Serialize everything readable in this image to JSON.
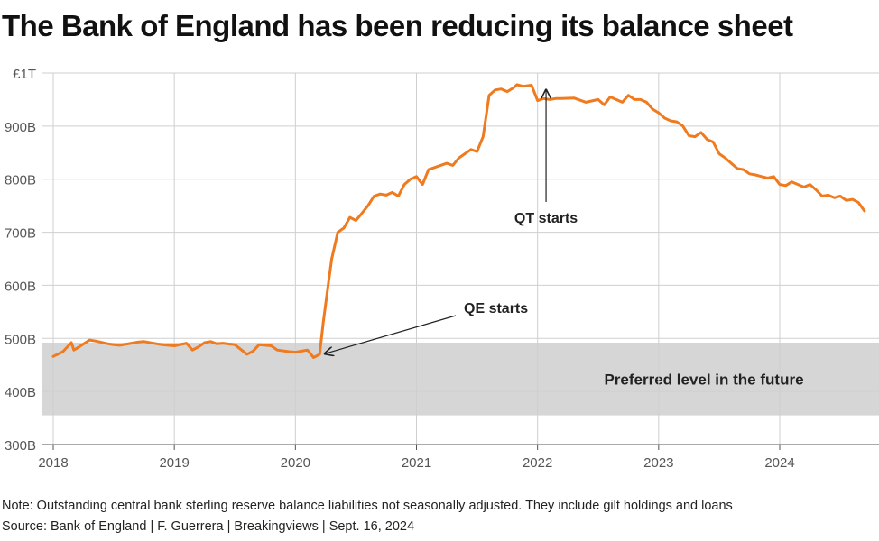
{
  "title": "The Bank of England has been reducing its balance sheet",
  "note": "Note: Outstanding central bank sterling reserve balance liabilities not seasonally adjusted. They include gilt holdings and loans",
  "source": "Source: Bank of England | F. Guerrera | Breakingviews | Sept. 16, 2024",
  "chart_data": {
    "type": "line",
    "title": "The Bank of England has been reducing its balance sheet",
    "xlabel": "",
    "ylabel": "",
    "xlim": [
      2018.0,
      2024.7
    ],
    "ylim": [
      300,
      1000
    ],
    "grid": true,
    "x_ticks": [
      {
        "value": 2018,
        "label": "2018"
      },
      {
        "value": 2019,
        "label": "2019"
      },
      {
        "value": 2020,
        "label": "2020"
      },
      {
        "value": 2021,
        "label": "2021"
      },
      {
        "value": 2022,
        "label": "2022"
      },
      {
        "value": 2023,
        "label": "2023"
      },
      {
        "value": 2024,
        "label": "2024"
      }
    ],
    "y_ticks": [
      {
        "value": 300,
        "label": "300B"
      },
      {
        "value": 400,
        "label": "400B"
      },
      {
        "value": 500,
        "label": "500B"
      },
      {
        "value": 600,
        "label": "600B"
      },
      {
        "value": 700,
        "label": "700B"
      },
      {
        "value": 800,
        "label": "800B"
      },
      {
        "value": 900,
        "label": "900B"
      },
      {
        "value": 1000,
        "label": "£1T"
      }
    ],
    "band": {
      "from": 355,
      "to": 492,
      "label": "Preferred level in the future",
      "color": "#d6d6d6"
    },
    "line_color": "#f07a1e",
    "series": [
      {
        "name": "Reserve balance liabilities",
        "x": [
          2018.0,
          2018.08,
          2018.15,
          2018.17,
          2018.2,
          2018.3,
          2018.35,
          2018.45,
          2018.5,
          2018.55,
          2018.7,
          2018.75,
          2018.9,
          2019.0,
          2019.1,
          2019.15,
          2019.2,
          2019.25,
          2019.3,
          2019.35,
          2019.4,
          2019.5,
          2019.6,
          2019.65,
          2019.7,
          2019.8,
          2019.85,
          2019.95,
          2020.0,
          2020.1,
          2020.15,
          2020.2,
          2020.23,
          2020.27,
          2020.3,
          2020.35,
          2020.4,
          2020.45,
          2020.5,
          2020.55,
          2020.6,
          2020.65,
          2020.7,
          2020.75,
          2020.8,
          2020.85,
          2020.9,
          2020.95,
          2021.0,
          2021.05,
          2021.1,
          2021.2,
          2021.25,
          2021.3,
          2021.35,
          2021.4,
          2021.45,
          2021.5,
          2021.55,
          2021.6,
          2021.65,
          2021.7,
          2021.75,
          2021.8,
          2021.83,
          2021.88,
          2021.95,
          2022.0,
          2022.05,
          2022.1,
          2022.15,
          2022.2,
          2022.3,
          2022.4,
          2022.5,
          2022.55,
          2022.6,
          2022.7,
          2022.75,
          2022.8,
          2022.85,
          2022.9,
          2022.95,
          2023.0,
          2023.05,
          2023.1,
          2023.15,
          2023.2,
          2023.25,
          2023.3,
          2023.35,
          2023.4,
          2023.45,
          2023.5,
          2023.55,
          2023.6,
          2023.65,
          2023.7,
          2023.75,
          2023.8,
          2023.85,
          2023.9,
          2023.95,
          2024.0,
          2024.05,
          2024.1,
          2024.15,
          2024.2,
          2024.25,
          2024.3,
          2024.35,
          2024.4,
          2024.45,
          2024.5,
          2024.55,
          2024.6,
          2024.65,
          2024.7
        ],
        "values": [
          466,
          475,
          492,
          478,
          482,
          497,
          495,
          490,
          488,
          487,
          493,
          494,
          488,
          486,
          491,
          478,
          484,
          492,
          494,
          490,
          491,
          488,
          470,
          476,
          488,
          486,
          478,
          475,
          474,
          478,
          464,
          470,
          530,
          600,
          650,
          700,
          708,
          728,
          722,
          736,
          750,
          768,
          772,
          770,
          775,
          768,
          790,
          800,
          805,
          790,
          818,
          826,
          830,
          826,
          840,
          848,
          856,
          852,
          880,
          958,
          968,
          970,
          965,
          972,
          978,
          975,
          977,
          948,
          952,
          950,
          952,
          952,
          953,
          945,
          950,
          940,
          955,
          945,
          958,
          950,
          950,
          945,
          932,
          925,
          915,
          910,
          908,
          900,
          882,
          880,
          888,
          875,
          870,
          848,
          840,
          830,
          820,
          818,
          810,
          808,
          805,
          802,
          805,
          790,
          788,
          795,
          790,
          785,
          790,
          780,
          768,
          770,
          765,
          768,
          760,
          762,
          756,
          740
        ]
      }
    ],
    "annotations": [
      {
        "text": "QE starts",
        "x": 2020.22,
        "y": 466
      },
      {
        "text": "QT starts",
        "x": 2022.07,
        "y": 975
      }
    ]
  }
}
